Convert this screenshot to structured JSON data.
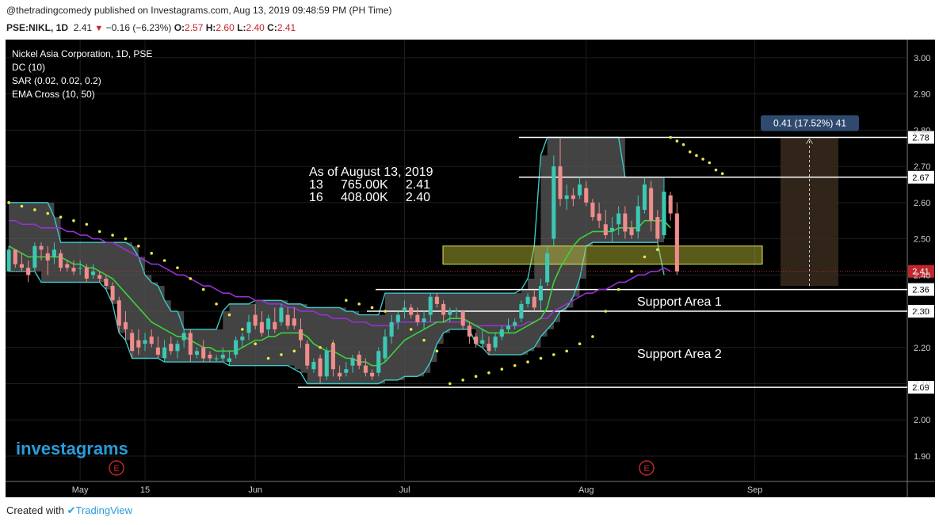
{
  "header": {
    "published": "@thetradingcomedy published on Investagrams.com, Aug 13, 2019 09:48:59 PM (PH Time)",
    "symbol": "PSE:NIKL, 1D",
    "last": "2.41",
    "change": "−0.16 (−6.23%)",
    "o_label": "O:",
    "o_val": "2.57",
    "h_label": "H:",
    "h_val": "2.60",
    "l_label": "L:",
    "l_val": "2.40",
    "c_label": "C:",
    "c_val": "2.41"
  },
  "legend": {
    "title": "Nickel Asia Corporation, 1D, PSE",
    "dc": "DC (10)",
    "sar": "SAR (0.02, 0.02, 0.2)",
    "ema": "EMA Cross (10, 50)"
  },
  "annotation": {
    "line1": "As of August 13, 2019",
    "line2": "13     765.00K     2.41",
    "line3": "16     408.00K     2.40"
  },
  "measure_label": "0.41 (17.52%) 41",
  "support_labels": [
    "Support Area 1",
    "Support Area 2"
  ],
  "watermark": "investagrams",
  "earnings_marker": "E",
  "footer": {
    "created": "Created with",
    "brand": "TradingView"
  },
  "colors": {
    "up": "#3cc8b4",
    "down": "#ef8c8c",
    "dc_band": "#5a5a5a",
    "dc_line": "#3cc8c8",
    "sar": "#e8e84a",
    "ema_fast": "#3cd23c",
    "ema_slow": "#9632d2",
    "support_zone": "#c8c83c",
    "background": "#000000",
    "price_label": "#c0262d"
  },
  "chart_data": {
    "type": "candlestick",
    "title": "Nickel Asia Corporation, 1D, PSE",
    "symbol": "PSE:NIKL",
    "y_ticks": [
      "3.00",
      "2.90",
      "2.80",
      "2.70",
      "2.60",
      "2.50",
      "2.40",
      "2.30",
      "2.20",
      "2.10",
      "2.00",
      "1.90"
    ],
    "ylim": [
      1.83,
      3.05
    ],
    "x_ticks": [
      {
        "label": "May",
        "i": 11
      },
      {
        "label": "15",
        "i": 21
      },
      {
        "label": "Jun",
        "i": 38
      },
      {
        "label": "Jul",
        "i": 61
      },
      {
        "label": "Aug",
        "i": 89
      },
      {
        "label": "Sep",
        "i": 115
      }
    ],
    "n_slots": 139,
    "candles": [
      [
        2.41,
        2.48,
        2.41,
        2.47
      ],
      [
        2.47,
        2.47,
        2.42,
        2.43
      ],
      [
        2.43,
        2.46,
        2.41,
        2.42
      ],
      [
        2.42,
        2.44,
        2.38,
        2.4
      ],
      [
        2.42,
        2.49,
        2.41,
        2.48
      ],
      [
        2.48,
        2.49,
        2.44,
        2.47
      ],
      [
        2.46,
        2.48,
        2.4,
        2.44
      ],
      [
        2.45,
        2.49,
        2.43,
        2.47
      ],
      [
        2.46,
        2.47,
        2.41,
        2.42
      ],
      [
        2.43,
        2.44,
        2.41,
        2.42
      ],
      [
        2.42,
        2.44,
        2.4,
        2.41
      ],
      [
        2.42,
        2.44,
        2.4,
        2.42
      ],
      [
        2.42,
        2.43,
        2.38,
        2.39
      ],
      [
        2.4,
        2.43,
        2.39,
        2.41
      ],
      [
        2.4,
        2.41,
        2.38,
        2.39
      ],
      [
        2.39,
        2.4,
        2.36,
        2.37
      ],
      [
        2.37,
        2.38,
        2.32,
        2.33
      ],
      [
        2.33,
        2.34,
        2.24,
        2.26
      ],
      [
        2.27,
        2.3,
        2.22,
        2.25
      ],
      [
        2.24,
        2.25,
        2.17,
        2.19
      ],
      [
        2.22,
        2.25,
        2.18,
        2.2
      ],
      [
        2.21,
        2.24,
        2.19,
        2.22
      ],
      [
        2.23,
        2.25,
        2.2,
        2.21
      ],
      [
        2.2,
        2.23,
        2.17,
        2.18
      ],
      [
        2.17,
        2.22,
        2.16,
        2.2
      ],
      [
        2.21,
        2.23,
        2.18,
        2.19
      ],
      [
        2.19,
        2.22,
        2.17,
        2.21
      ],
      [
        2.22,
        2.25,
        2.2,
        2.24
      ],
      [
        2.24,
        2.25,
        2.16,
        2.18
      ],
      [
        2.18,
        2.2,
        2.17,
        2.19
      ],
      [
        2.2,
        2.22,
        2.16,
        2.17
      ],
      [
        2.18,
        2.19,
        2.16,
        2.17
      ],
      [
        2.17,
        2.18,
        2.16,
        2.17
      ],
      [
        2.17,
        2.2,
        2.16,
        2.18
      ],
      [
        2.16,
        2.19,
        2.15,
        2.17
      ],
      [
        2.18,
        2.23,
        2.17,
        2.22
      ],
      [
        2.22,
        2.24,
        2.2,
        2.23
      ],
      [
        2.24,
        2.29,
        2.22,
        2.27
      ],
      [
        2.29,
        2.32,
        2.25,
        2.26
      ],
      [
        2.27,
        2.3,
        2.23,
        2.24
      ],
      [
        2.25,
        2.29,
        2.23,
        2.28
      ],
      [
        2.27,
        2.31,
        2.24,
        2.25
      ],
      [
        2.27,
        2.32,
        2.26,
        2.31
      ],
      [
        2.29,
        2.31,
        2.25,
        2.26
      ],
      [
        2.28,
        2.31,
        2.25,
        2.26
      ],
      [
        2.25,
        2.28,
        2.2,
        2.22
      ],
      [
        2.21,
        2.22,
        2.14,
        2.15
      ],
      [
        2.14,
        2.17,
        2.13,
        2.16
      ],
      [
        2.17,
        2.18,
        2.1,
        2.12
      ],
      [
        2.12,
        2.2,
        2.11,
        2.19
      ],
      [
        2.21,
        2.22,
        2.12,
        2.14
      ],
      [
        2.13,
        2.15,
        2.11,
        2.12
      ],
      [
        2.13,
        2.16,
        2.12,
        2.14
      ],
      [
        2.15,
        2.18,
        2.13,
        2.17
      ],
      [
        2.18,
        2.19,
        2.14,
        2.15
      ],
      [
        2.15,
        2.17,
        2.12,
        2.13
      ],
      [
        2.13,
        2.14,
        2.11,
        2.12
      ],
      [
        2.13,
        2.2,
        2.12,
        2.19
      ],
      [
        2.17,
        2.25,
        2.16,
        2.23
      ],
      [
        2.23,
        2.29,
        2.21,
        2.27
      ],
      [
        2.27,
        2.3,
        2.25,
        2.29
      ],
      [
        2.3,
        2.33,
        2.28,
        2.31
      ],
      [
        2.31,
        2.32,
        2.28,
        2.29
      ],
      [
        2.29,
        2.31,
        2.26,
        2.27
      ],
      [
        2.27,
        2.3,
        2.25,
        2.28
      ],
      [
        2.29,
        2.35,
        2.27,
        2.34
      ],
      [
        2.34,
        2.35,
        2.31,
        2.32
      ],
      [
        2.32,
        2.33,
        2.27,
        2.29
      ],
      [
        2.29,
        2.31,
        2.27,
        2.3
      ],
      [
        2.3,
        2.31,
        2.28,
        2.3
      ],
      [
        2.3,
        2.3,
        2.25,
        2.26
      ],
      [
        2.26,
        2.27,
        2.21,
        2.23
      ],
      [
        2.23,
        2.24,
        2.2,
        2.21
      ],
      [
        2.21,
        2.25,
        2.2,
        2.22
      ],
      [
        2.21,
        2.23,
        2.18,
        2.19
      ],
      [
        2.2,
        2.24,
        2.19,
        2.23
      ],
      [
        2.23,
        2.26,
        2.22,
        2.25
      ],
      [
        2.25,
        2.28,
        2.24,
        2.26
      ],
      [
        2.26,
        2.28,
        2.25,
        2.27
      ],
      [
        2.28,
        2.33,
        2.27,
        2.32
      ],
      [
        2.32,
        2.35,
        2.31,
        2.34
      ],
      [
        2.34,
        2.36,
        2.3,
        2.31
      ],
      [
        2.33,
        2.39,
        2.3,
        2.37
      ],
      [
        2.38,
        2.48,
        2.37,
        2.46
      ],
      [
        2.5,
        2.73,
        2.48,
        2.7
      ],
      [
        2.7,
        2.78,
        2.59,
        2.61
      ],
      [
        2.61,
        2.65,
        2.58,
        2.62
      ],
      [
        2.62,
        2.64,
        2.59,
        2.61
      ],
      [
        2.62,
        2.67,
        2.61,
        2.65
      ],
      [
        2.64,
        2.66,
        2.59,
        2.6
      ],
      [
        2.6,
        2.61,
        2.55,
        2.56
      ],
      [
        2.57,
        2.6,
        2.53,
        2.55
      ],
      [
        2.54,
        2.58,
        2.5,
        2.51
      ],
      [
        2.52,
        2.56,
        2.49,
        2.53
      ],
      [
        2.54,
        2.59,
        2.51,
        2.57
      ],
      [
        2.57,
        2.59,
        2.5,
        2.52
      ],
      [
        2.53,
        2.55,
        2.5,
        2.51
      ],
      [
        2.52,
        2.62,
        2.5,
        2.59
      ],
      [
        2.58,
        2.67,
        2.57,
        2.65
      ],
      [
        2.64,
        2.66,
        2.52,
        2.55
      ],
      [
        2.56,
        2.58,
        2.49,
        2.5
      ],
      [
        2.51,
        2.67,
        2.5,
        2.63
      ],
      [
        2.62,
        2.63,
        2.55,
        2.57
      ],
      [
        2.57,
        2.6,
        2.4,
        2.41
      ]
    ],
    "dc_upper": [
      2.6,
      2.6,
      2.6,
      2.6,
      2.6,
      2.6,
      2.6,
      2.56,
      2.49,
      2.49,
      2.49,
      2.49,
      2.49,
      2.49,
      2.49,
      2.49,
      2.49,
      2.49,
      2.49,
      2.48,
      2.45,
      2.4,
      2.38,
      2.37,
      2.33,
      2.3,
      2.3,
      2.25,
      2.25,
      2.25,
      2.25,
      2.25,
      2.25,
      2.3,
      2.32,
      2.32,
      2.32,
      2.32,
      2.33,
      2.33,
      2.33,
      2.33,
      2.33,
      2.32,
      2.32,
      2.32,
      2.31,
      2.31,
      2.31,
      2.31,
      2.31,
      2.31,
      2.3,
      2.3,
      2.29,
      2.29,
      2.29,
      2.29,
      2.35,
      2.35,
      2.35,
      2.35,
      2.35,
      2.35,
      2.35,
      2.35,
      2.35,
      2.35,
      2.35,
      2.35,
      2.35,
      2.35,
      2.35,
      2.35,
      2.35,
      2.35,
      2.35,
      2.35,
      2.35,
      2.36,
      2.39,
      2.48,
      2.73,
      2.78,
      2.78,
      2.78,
      2.78,
      2.78,
      2.78,
      2.78,
      2.78,
      2.78,
      2.78,
      2.78,
      2.78,
      2.67,
      2.67,
      2.67,
      2.67,
      2.67,
      2.67,
      2.67
    ],
    "dc_lower": [
      2.41,
      2.41,
      2.41,
      2.41,
      2.41,
      2.38,
      2.38,
      2.38,
      2.38,
      2.38,
      2.38,
      2.38,
      2.38,
      2.38,
      2.38,
      2.36,
      2.32,
      2.24,
      2.22,
      2.17,
      2.17,
      2.17,
      2.17,
      2.17,
      2.16,
      2.16,
      2.16,
      2.16,
      2.16,
      2.16,
      2.16,
      2.16,
      2.16,
      2.16,
      2.15,
      2.15,
      2.15,
      2.15,
      2.15,
      2.15,
      2.15,
      2.15,
      2.15,
      2.15,
      2.14,
      2.13,
      2.1,
      2.1,
      2.1,
      2.1,
      2.1,
      2.1,
      2.1,
      2.1,
      2.1,
      2.1,
      2.1,
      2.1,
      2.11,
      2.11,
      2.11,
      2.12,
      2.12,
      2.12,
      2.13,
      2.16,
      2.21,
      2.24,
      2.25,
      2.25,
      2.25,
      2.25,
      2.21,
      2.2,
      2.18,
      2.18,
      2.18,
      2.18,
      2.18,
      2.18,
      2.19,
      2.2,
      2.23,
      2.25,
      2.27,
      2.3,
      2.31,
      2.34,
      2.39,
      2.48,
      2.49,
      2.49,
      2.49,
      2.49,
      2.49,
      2.49,
      2.49,
      2.49,
      2.49,
      2.49,
      2.49,
      2.4
    ],
    "ema_fast": [
      2.48,
      2.47,
      2.46,
      2.45,
      2.45,
      2.45,
      2.45,
      2.45,
      2.45,
      2.44,
      2.43,
      2.43,
      2.42,
      2.42,
      2.41,
      2.4,
      2.39,
      2.37,
      2.35,
      2.33,
      2.31,
      2.29,
      2.27,
      2.26,
      2.25,
      2.24,
      2.23,
      2.23,
      2.22,
      2.21,
      2.2,
      2.2,
      2.19,
      2.19,
      2.19,
      2.19,
      2.2,
      2.21,
      2.22,
      2.22,
      2.23,
      2.23,
      2.24,
      2.24,
      2.24,
      2.24,
      2.23,
      2.21,
      2.2,
      2.19,
      2.19,
      2.18,
      2.17,
      2.17,
      2.16,
      2.16,
      2.15,
      2.15,
      2.16,
      2.18,
      2.2,
      2.22,
      2.23,
      2.24,
      2.25,
      2.26,
      2.27,
      2.27,
      2.28,
      2.28,
      2.28,
      2.27,
      2.26,
      2.25,
      2.24,
      2.24,
      2.24,
      2.24,
      2.24,
      2.25,
      2.26,
      2.27,
      2.28,
      2.31,
      2.38,
      2.42,
      2.45,
      2.48,
      2.5,
      2.51,
      2.52,
      2.52,
      2.52,
      2.52,
      2.53,
      2.53,
      2.53,
      2.53,
      2.55,
      2.55,
      2.55,
      2.55,
      2.53
    ],
    "ema_slow": [
      2.55,
      2.55,
      2.54,
      2.54,
      2.54,
      2.53,
      2.53,
      2.53,
      2.53,
      2.52,
      2.52,
      2.51,
      2.51,
      2.5,
      2.5,
      2.49,
      2.49,
      2.48,
      2.47,
      2.46,
      2.45,
      2.44,
      2.43,
      2.43,
      2.42,
      2.41,
      2.4,
      2.4,
      2.39,
      2.38,
      2.37,
      2.37,
      2.36,
      2.35,
      2.35,
      2.34,
      2.34,
      2.34,
      2.33,
      2.33,
      2.32,
      2.32,
      2.32,
      2.31,
      2.31,
      2.3,
      2.3,
      2.3,
      2.29,
      2.29,
      2.28,
      2.28,
      2.28,
      2.27,
      2.27,
      2.27,
      2.26,
      2.26,
      2.26,
      2.26,
      2.27,
      2.27,
      2.27,
      2.27,
      2.27,
      2.27,
      2.27,
      2.27,
      2.27,
      2.27,
      2.27,
      2.27,
      2.26,
      2.26,
      2.26,
      2.26,
      2.26,
      2.26,
      2.26,
      2.26,
      2.27,
      2.27,
      2.28,
      2.28,
      2.3,
      2.31,
      2.32,
      2.33,
      2.34,
      2.35,
      2.35,
      2.36,
      2.36,
      2.37,
      2.38,
      2.38,
      2.39,
      2.4,
      2.4,
      2.41,
      2.41,
      2.42,
      2.41
    ],
    "sar": [
      [
        0,
        2.6
      ],
      [
        2,
        2.59
      ],
      [
        4,
        2.58
      ],
      [
        6,
        2.57
      ],
      [
        8,
        2.56
      ],
      [
        10,
        2.55
      ],
      [
        12,
        2.54
      ],
      [
        14,
        2.52
      ],
      [
        16,
        2.51
      ],
      [
        18,
        2.5
      ],
      [
        20,
        2.48
      ],
      [
        22,
        2.46
      ],
      [
        24,
        2.44
      ],
      [
        26,
        2.42
      ],
      [
        28,
        2.39
      ],
      [
        30,
        2.36
      ],
      [
        32,
        2.32
      ],
      [
        34,
        2.29
      ],
      [
        36,
        2.25
      ],
      [
        38,
        2.21
      ],
      [
        40,
        2.17
      ],
      [
        42,
        2.18
      ],
      [
        44,
        2.19
      ],
      [
        46,
        2.19
      ],
      [
        48,
        2.2
      ],
      [
        50,
        2.21
      ],
      [
        52,
        2.33
      ],
      [
        54,
        2.32
      ],
      [
        56,
        2.31
      ],
      [
        58,
        2.3
      ],
      [
        60,
        2.28
      ],
      [
        62,
        2.25
      ],
      [
        64,
        2.22
      ],
      [
        66,
        2.19
      ],
      [
        68,
        2.1
      ],
      [
        70,
        2.11
      ],
      [
        72,
        2.12
      ],
      [
        74,
        2.13
      ],
      [
        76,
        2.14
      ],
      [
        78,
        2.15
      ],
      [
        80,
        2.16
      ],
      [
        82,
        2.17
      ],
      [
        84,
        2.18
      ],
      [
        86,
        2.19
      ],
      [
        88,
        2.21
      ],
      [
        90,
        2.23
      ],
      [
        92,
        2.3
      ],
      [
        94,
        2.36
      ],
      [
        96,
        2.41
      ],
      [
        98,
        2.45
      ],
      [
        100,
        2.47
      ],
      [
        102,
        2.78
      ],
      [
        103,
        2.77
      ],
      [
        104,
        2.76
      ],
      [
        105,
        2.74
      ],
      [
        106,
        2.73
      ],
      [
        107,
        2.72
      ],
      [
        108,
        2.71
      ],
      [
        109,
        2.69
      ],
      [
        110,
        2.68
      ]
    ],
    "sar_index_offset": [
      0,
      0,
      0,
      0,
      0,
      0,
      0,
      0,
      0,
      0,
      0,
      0,
      0,
      0,
      0,
      0,
      0,
      0,
      0,
      0,
      0,
      0,
      0,
      0,
      0,
      0,
      0,
      0,
      0,
      0,
      0,
      0,
      0,
      0,
      0,
      0,
      0,
      0,
      0,
      0,
      0,
      0,
      0,
      0,
      0,
      0,
      0,
      0,
      0,
      0,
      0,
      0,
      0,
      0,
      0,
      0,
      0,
      0,
      0,
      0
    ],
    "support_zone": [
      2.43,
      2.48
    ],
    "horizontal_levels": [
      {
        "price": 2.78,
        "label": "2.78"
      },
      {
        "price": 2.67,
        "label": "2.67"
      },
      {
        "price": 2.36,
        "label": "2.36"
      },
      {
        "price": 2.3,
        "label": "2.30"
      },
      {
        "price": 2.09,
        "label": "2.09"
      }
    ],
    "last_price": {
      "price": 2.41,
      "label": "2.41"
    },
    "measure": {
      "from": 2.37,
      "to": 2.78,
      "label": "0.41 (17.52%) 41"
    }
  }
}
